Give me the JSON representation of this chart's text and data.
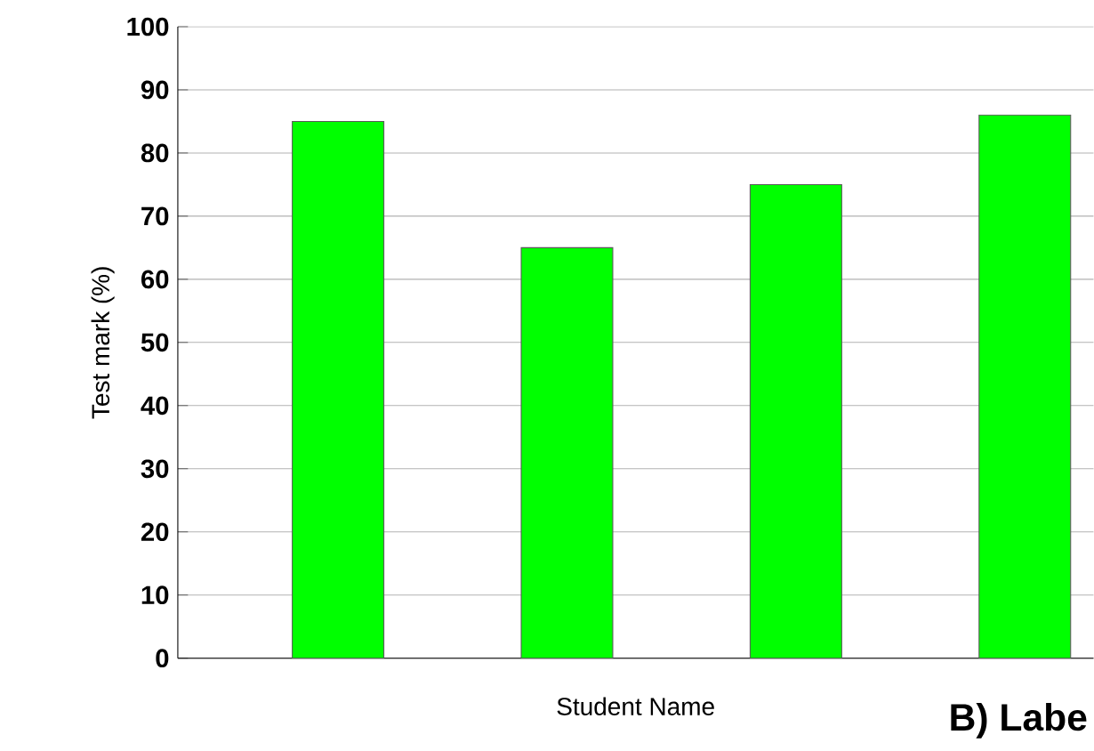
{
  "chart_data": {
    "type": "bar",
    "xlabel": "Student Name",
    "ylabel": "Test mark (%)",
    "categories": [
      null,
      null,
      null,
      null
    ],
    "values": [
      85,
      65,
      75,
      86
    ],
    "color": "#00ff00",
    "ylim": [
      0,
      100
    ],
    "yticks": [
      0,
      10,
      20,
      30,
      40,
      50,
      60,
      70,
      80,
      90,
      100
    ],
    "grid": "y",
    "annotations": [
      "B) Labe"
    ]
  }
}
